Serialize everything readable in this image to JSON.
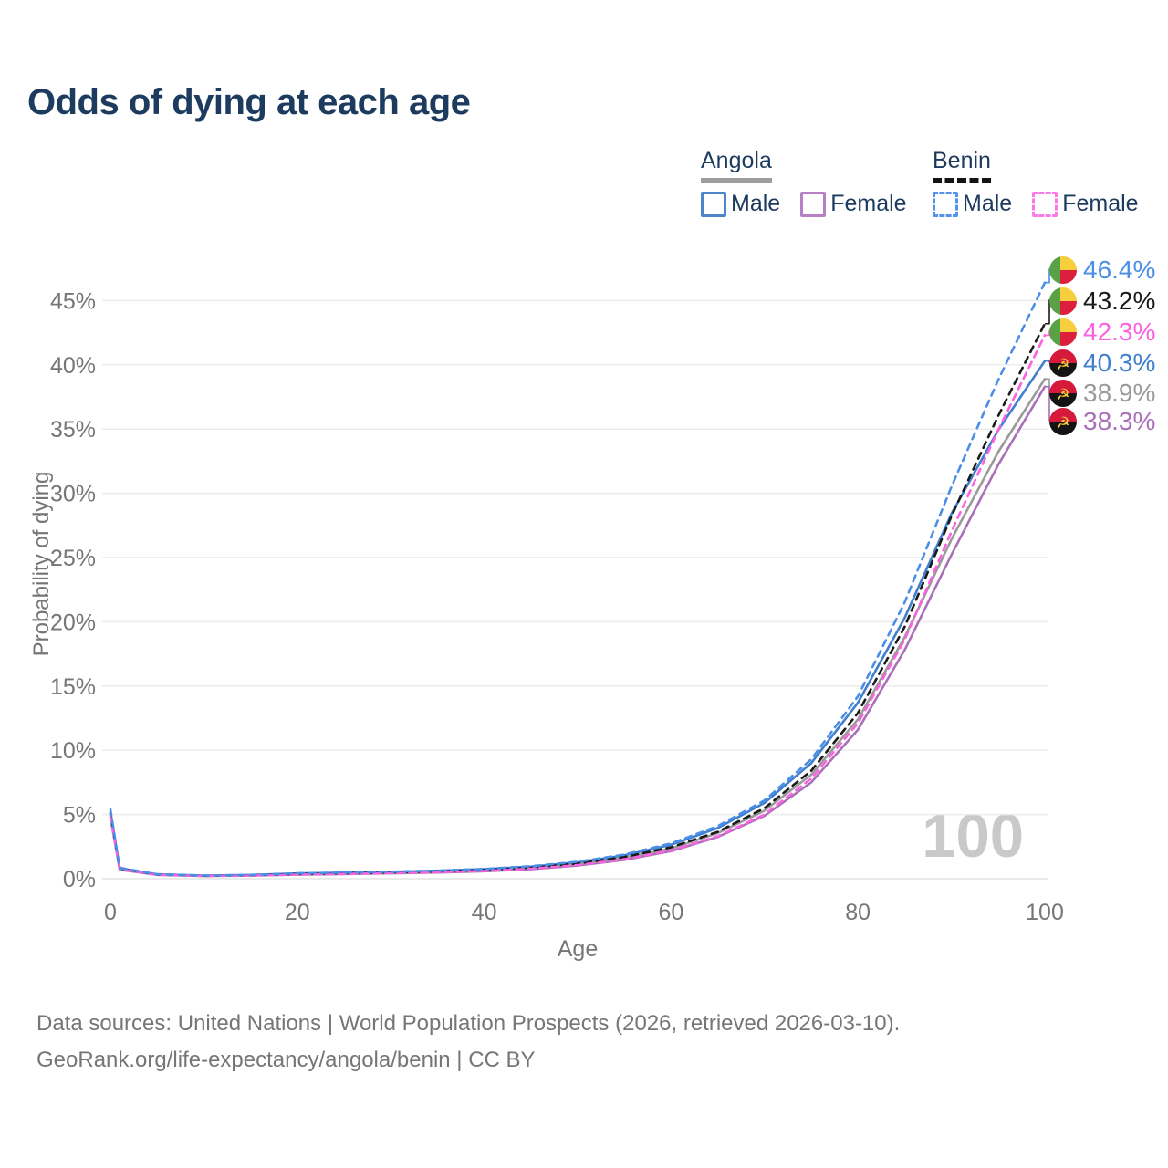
{
  "title": "Odds of dying at each age",
  "legend": {
    "groups": [
      {
        "label": "Angola",
        "underline": "solid",
        "items": [
          {
            "label": "Male"
          },
          {
            "label": "Female"
          }
        ]
      },
      {
        "label": "Benin",
        "underline": "dashed",
        "items": [
          {
            "label": "Male"
          },
          {
            "label": "Female"
          }
        ]
      }
    ]
  },
  "watermark": "100",
  "footer": {
    "line1": "Data sources: United Nations | World Population Prospects (2026, retrieved 2026-03-10).",
    "line2": "GeoRank.org/life-expectancy/angola/benin | CC BY"
  },
  "chart_data": {
    "type": "line",
    "title": "Odds of dying at each age",
    "xlabel": "Age",
    "ylabel": "Probability of dying",
    "xlim": [
      0,
      100
    ],
    "ylim": [
      0,
      47.5
    ],
    "grid": "horizontal",
    "x_ticks": [
      0,
      20,
      40,
      60,
      80,
      100
    ],
    "y_ticks": [
      0,
      5,
      10,
      15,
      20,
      25,
      30,
      35,
      40,
      45
    ],
    "y_tick_suffix": "%",
    "x": [
      0,
      1,
      5,
      10,
      15,
      20,
      25,
      30,
      35,
      40,
      45,
      50,
      55,
      60,
      65,
      70,
      75,
      80,
      85,
      90,
      95,
      100
    ],
    "series": [
      {
        "name": "Angola Female",
        "country": "Angola",
        "sex": "Female",
        "flag": "angola",
        "color": "#a970b8",
        "dash": false,
        "end_label": "38.3%",
        "values": [
          4.8,
          0.7,
          0.3,
          0.21,
          0.24,
          0.31,
          0.36,
          0.42,
          0.48,
          0.58,
          0.74,
          1.02,
          1.47,
          2.15,
          3.25,
          4.9,
          7.5,
          11.6,
          17.8,
          25.2,
          32.2,
          38.3
        ]
      },
      {
        "name": "Angola",
        "country": "Angola",
        "sex": "Both",
        "flag": "angola",
        "color": "#9a9a9a",
        "dash": false,
        "end_label": "38.9%",
        "values": [
          5.0,
          0.75,
          0.32,
          0.22,
          0.26,
          0.36,
          0.41,
          0.47,
          0.54,
          0.66,
          0.84,
          1.12,
          1.62,
          2.35,
          3.55,
          5.3,
          8.1,
          12.4,
          18.8,
          26.4,
          33.2,
          38.9
        ]
      },
      {
        "name": "Angola Male",
        "country": "Angola",
        "sex": "Male",
        "flag": "angola",
        "color": "#3f7fce",
        "dash": false,
        "end_label": "40.3%",
        "values": [
          5.2,
          0.8,
          0.34,
          0.24,
          0.29,
          0.41,
          0.47,
          0.54,
          0.62,
          0.74,
          0.94,
          1.28,
          1.82,
          2.65,
          3.95,
          5.9,
          9.0,
          13.7,
          20.3,
          28.4,
          34.9,
          40.3
        ]
      },
      {
        "name": "Benin",
        "country": "Benin",
        "sex": "Both",
        "flag": "benin",
        "color": "#1a1a1a",
        "dash": true,
        "end_label": "43.2%",
        "values": [
          5.1,
          0.8,
          0.33,
          0.23,
          0.27,
          0.37,
          0.42,
          0.48,
          0.56,
          0.68,
          0.86,
          1.18,
          1.68,
          2.45,
          3.65,
          5.5,
          8.4,
          12.9,
          19.6,
          28.2,
          36.0,
          43.2
        ]
      },
      {
        "name": "Benin Female",
        "country": "Benin",
        "sex": "Female",
        "flag": "benin",
        "color": "#fb61e1",
        "dash": true,
        "end_label": "42.3%",
        "values": [
          4.9,
          0.75,
          0.31,
          0.22,
          0.25,
          0.33,
          0.38,
          0.44,
          0.5,
          0.61,
          0.78,
          1.06,
          1.52,
          2.2,
          3.3,
          5.0,
          7.8,
          12.1,
          18.6,
          27.0,
          34.9,
          42.3
        ]
      },
      {
        "name": "Benin Male",
        "country": "Benin",
        "sex": "Male",
        "flag": "benin",
        "color": "#4b8ee8",
        "dash": true,
        "end_label": "46.4%",
        "values": [
          5.4,
          0.85,
          0.35,
          0.25,
          0.3,
          0.42,
          0.48,
          0.55,
          0.63,
          0.76,
          0.97,
          1.32,
          1.88,
          2.75,
          4.1,
          6.1,
          9.3,
          14.2,
          21.5,
          30.5,
          38.8,
          46.4
        ]
      }
    ],
    "end_label_order": [
      "Benin Male",
      "Benin",
      "Benin Female",
      "Angola Male",
      "Angola",
      "Angola Female"
    ],
    "flag_colors": {
      "benin_green": "#58a144",
      "benin_yellow": "#f7cf3d",
      "benin_red": "#dc1f3d",
      "angola_red": "#d61a3c",
      "angola_black": "#141414",
      "angola_yellow": "#f7cf3d"
    }
  }
}
